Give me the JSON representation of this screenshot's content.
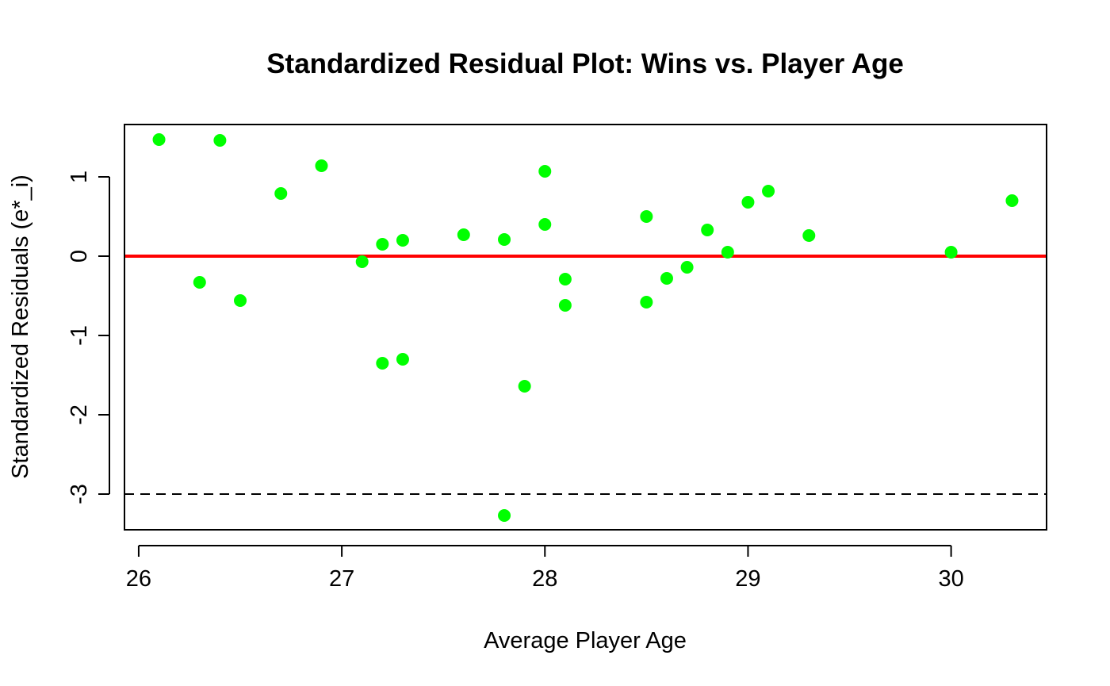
{
  "chart_data": {
    "type": "scatter",
    "title": "Standardized Residual Plot: Wins vs. Player Age",
    "xlabel": "Average Player Age",
    "ylabel": "Standardized Residuals (e*_i)",
    "xlim": [
      25.93,
      30.47
    ],
    "ylim": [
      -3.45,
      1.66
    ],
    "x_ticks": [
      26,
      27,
      28,
      29,
      30
    ],
    "x_tick_labels": [
      "26",
      "27",
      "28",
      "29",
      "30"
    ],
    "y_ticks": [
      -3,
      -2,
      -1,
      0,
      1
    ],
    "y_tick_labels": [
      "-3",
      "-2",
      "-1",
      "0",
      "1"
    ],
    "grid": false,
    "legend": "none",
    "point_color": "#00ff00",
    "reference_lines": [
      {
        "y": 0,
        "style": "solid",
        "color": "#ff0000"
      },
      {
        "y": -3,
        "style": "dashed",
        "color": "#000000"
      }
    ],
    "series": [
      {
        "x": [
          26.1,
          26.3,
          26.4,
          26.5,
          26.7,
          26.9,
          27.1,
          27.2,
          27.2,
          27.3,
          27.3,
          27.6,
          27.8,
          27.8,
          27.9,
          28.0,
          28.0,
          28.1,
          28.1,
          28.5,
          28.5,
          28.6,
          28.7,
          28.8,
          28.9,
          29.0,
          29.1,
          29.3,
          30.0,
          30.3
        ],
        "y": [
          1.47,
          -0.33,
          1.46,
          -0.56,
          0.79,
          1.14,
          -0.07,
          0.15,
          -1.35,
          0.2,
          -1.3,
          0.27,
          0.21,
          -3.27,
          -1.64,
          1.07,
          0.4,
          -0.29,
          -0.62,
          0.5,
          -0.58,
          -0.28,
          -0.14,
          0.33,
          0.05,
          0.68,
          0.82,
          0.26,
          0.05,
          0.7
        ]
      }
    ]
  }
}
